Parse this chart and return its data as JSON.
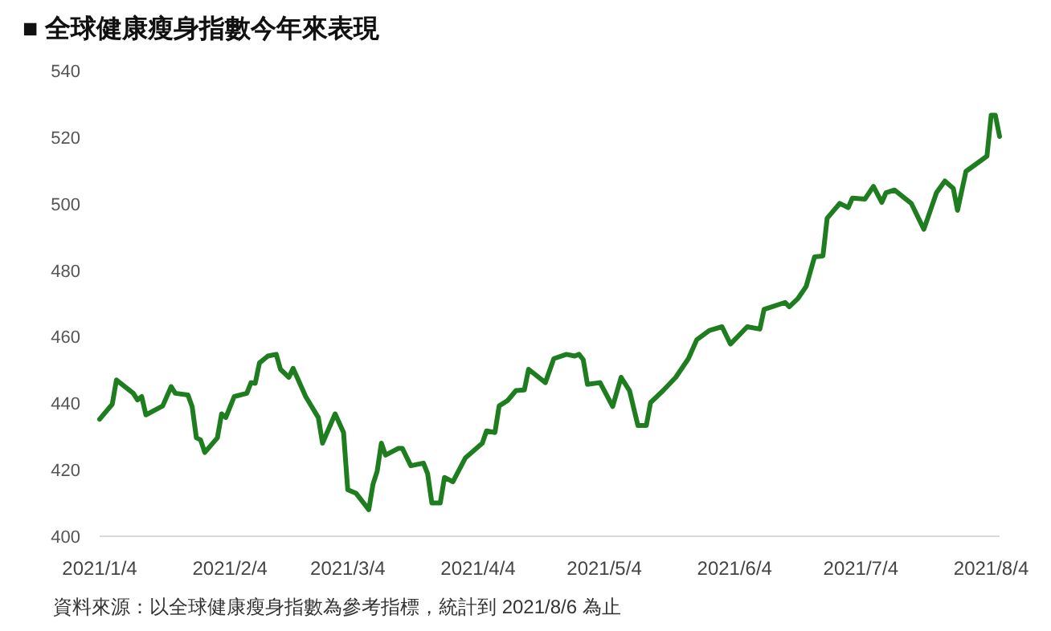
{
  "chart_data": {
    "type": "line",
    "title": "■ 全球健康瘦身指數今年來表現",
    "x": [
      "2021-01-04",
      "2021-01-07",
      "2021-01-08",
      "2021-01-12",
      "2021-01-13",
      "2021-01-14",
      "2021-01-15",
      "2021-01-19",
      "2021-01-21",
      "2021-01-22",
      "2021-01-25",
      "2021-01-26",
      "2021-01-27",
      "2021-01-28",
      "2021-01-29",
      "2021-02-01",
      "2021-02-02",
      "2021-02-03",
      "2021-02-05",
      "2021-02-08",
      "2021-02-09",
      "2021-02-10",
      "2021-02-11",
      "2021-02-13",
      "2021-02-15",
      "2021-02-16",
      "2021-02-18",
      "2021-02-19",
      "2021-02-22",
      "2021-02-25",
      "2021-02-26",
      "2021-03-01",
      "2021-03-03",
      "2021-03-04",
      "2021-03-06",
      "2021-03-09",
      "2021-03-10",
      "2021-03-11",
      "2021-03-12",
      "2021-03-13",
      "2021-03-16",
      "2021-03-17",
      "2021-03-19",
      "2021-03-22",
      "2021-03-23",
      "2021-03-24",
      "2021-03-26",
      "2021-03-27",
      "2021-03-29",
      "2021-04-01",
      "2021-04-02",
      "2021-04-05",
      "2021-04-06",
      "2021-04-08",
      "2021-04-09",
      "2021-04-11",
      "2021-04-13",
      "2021-04-15",
      "2021-04-16",
      "2021-04-20",
      "2021-04-22",
      "2021-04-25",
      "2021-04-27",
      "2021-04-28",
      "2021-04-29",
      "2021-04-30",
      "2021-05-03",
      "2021-05-06",
      "2021-05-08",
      "2021-05-10",
      "2021-05-12",
      "2021-05-14",
      "2021-05-15",
      "2021-05-18",
      "2021-05-21",
      "2021-05-24",
      "2021-05-26",
      "2021-05-29",
      "2021-06-01",
      "2021-06-03",
      "2021-06-07",
      "2021-06-10",
      "2021-06-11",
      "2021-06-16",
      "2021-06-17",
      "2021-06-19",
      "2021-06-21",
      "2021-06-23",
      "2021-06-25",
      "2021-06-26",
      "2021-06-29",
      "2021-07-01",
      "2021-07-02",
      "2021-07-05",
      "2021-07-07",
      "2021-07-09",
      "2021-07-10",
      "2021-07-12",
      "2021-07-16",
      "2021-07-19",
      "2021-07-22",
      "2021-07-24",
      "2021-07-26",
      "2021-07-27",
      "2021-07-29",
      "2021-08-03",
      "2021-08-04",
      "2021-08-05",
      "2021-08-06"
    ],
    "series": [
      {
        "color": "#1e7d1e",
        "values": [
          435.2,
          439.7,
          447,
          443,
          441,
          442,
          436.5,
          439.2,
          445,
          443,
          442.5,
          439,
          429.6,
          429,
          425.2,
          429.6,
          436.8,
          435.7,
          442,
          443,
          446.2,
          446,
          452.1,
          454.2,
          454.7,
          450.2,
          447.8,
          450.5,
          442,
          435.7,
          428,
          436.8,
          431.2,
          414,
          412.9,
          408,
          415.6,
          419.6,
          428,
          424.4,
          426.4,
          426.4,
          421.2,
          422,
          418.8,
          410,
          410,
          417.7,
          416.4,
          423.6,
          424.7,
          428,
          431.7,
          431.2,
          439.2,
          440.8,
          443.8,
          444,
          450.2,
          446.2,
          453.4,
          454.7,
          454.2,
          454.7,
          453.1,
          445.7,
          446.2,
          439,
          447.8,
          443.8,
          433.3,
          433.3,
          440.2,
          443.8,
          447.8,
          453.4,
          459.1,
          461.9,
          463,
          457.8,
          463,
          462.3,
          468.2,
          470.3,
          469,
          471.4,
          475.1,
          484,
          484.3,
          495.6,
          500.1,
          498.8,
          501.7,
          501.4,
          505.2,
          500.4,
          503.3,
          504.1,
          500.1,
          492.3,
          503.3,
          506.8,
          504.6,
          498,
          509.7,
          514.3,
          526.6,
          526.6,
          520.2
        ]
      }
    ],
    "xlim": [
      "2021-01-04",
      "2021-08-06"
    ],
    "xticks": [
      {
        "value": "2021-01-04",
        "label": "2021/1/4"
      },
      {
        "value": "2021-02-04",
        "label": "2021/2/4"
      },
      {
        "value": "2021-03-04",
        "label": "2021/3/4"
      },
      {
        "value": "2021-04-04",
        "label": "2021/4/4"
      },
      {
        "value": "2021-05-04",
        "label": "2021/5/4"
      },
      {
        "value": "2021-06-04",
        "label": "2021/6/4"
      },
      {
        "value": "2021-07-04",
        "label": "2021/7/4"
      },
      {
        "value": "2021-08-04",
        "label": "2021/8/4"
      }
    ],
    "ylim": [
      400,
      540
    ],
    "yticks": [
      400,
      420,
      440,
      460,
      480,
      500,
      520,
      540
    ],
    "annotations": [
      "資料來源：以全球健康瘦身指數為參考指標，統計到 2021/8/6 為止"
    ]
  }
}
